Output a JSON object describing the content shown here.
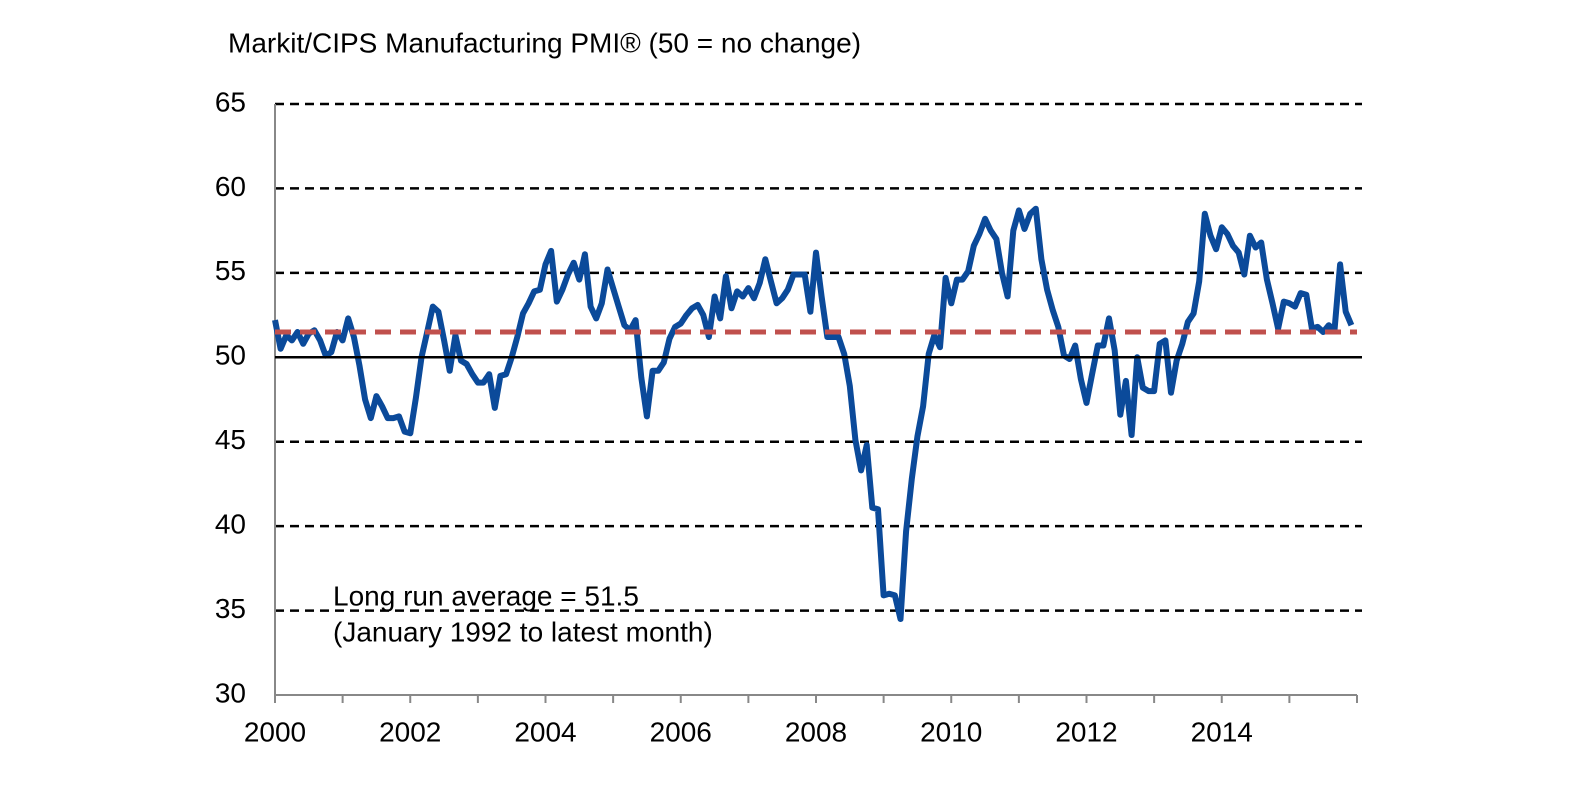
{
  "chart_data": {
    "type": "line",
    "title": "Markit/CIPS Manufacturing PMI® (50 = no change)",
    "annotation": [
      "Long run average = 51.5",
      "(January 1992 to latest month)"
    ],
    "xlim": [
      2000,
      2016
    ],
    "xticks": [
      2000,
      2002,
      2004,
      2006,
      2008,
      2010,
      2012,
      2014
    ],
    "xminor_ticks": [
      2001,
      2003,
      2005,
      2007,
      2009,
      2011,
      2013,
      2015,
      2016
    ],
    "ylim": [
      30,
      65
    ],
    "yticks": [
      30,
      35,
      40,
      45,
      50,
      55,
      60,
      65
    ],
    "grid": true,
    "reference_lines": [
      {
        "value": 50,
        "color": "#000000",
        "dashed": false
      },
      {
        "value": 51.5,
        "color": "#c0504d",
        "dashed": true
      }
    ],
    "x": [
      2000,
      2000.083,
      2000.167,
      2000.25,
      2000.333,
      2000.417,
      2000.5,
      2000.583,
      2000.667,
      2000.75,
      2000.833,
      2000.917,
      2001,
      2001.083,
      2001.167,
      2001.25,
      2001.333,
      2001.417,
      2001.5,
      2001.583,
      2001.667,
      2001.75,
      2001.833,
      2001.917,
      2002,
      2002.083,
      2002.167,
      2002.25,
      2002.333,
      2002.417,
      2002.5,
      2002.583,
      2002.667,
      2002.75,
      2002.833,
      2002.917,
      2003,
      2003.083,
      2003.167,
      2003.25,
      2003.333,
      2003.417,
      2003.5,
      2003.583,
      2003.667,
      2003.75,
      2003.833,
      2003.917,
      2004,
      2004.083,
      2004.167,
      2004.25,
      2004.333,
      2004.417,
      2004.5,
      2004.583,
      2004.667,
      2004.75,
      2004.833,
      2004.917,
      2005,
      2005.083,
      2005.167,
      2005.25,
      2005.333,
      2005.417,
      2005.5,
      2005.583,
      2005.667,
      2005.75,
      2005.833,
      2005.917,
      2006,
      2006.083,
      2006.167,
      2006.25,
      2006.333,
      2006.417,
      2006.5,
      2006.583,
      2006.667,
      2006.75,
      2006.833,
      2006.917,
      2007,
      2007.083,
      2007.167,
      2007.25,
      2007.333,
      2007.417,
      2007.5,
      2007.583,
      2007.667,
      2007.75,
      2007.833,
      2007.917,
      2008,
      2008.083,
      2008.167,
      2008.25,
      2008.333,
      2008.417,
      2008.5,
      2008.583,
      2008.667,
      2008.75,
      2008.833,
      2008.917,
      2009,
      2009.083,
      2009.167,
      2009.25,
      2009.333,
      2009.417,
      2009.5,
      2009.583,
      2009.667,
      2009.75,
      2009.833,
      2009.917,
      2010,
      2010.083,
      2010.167,
      2010.25,
      2010.333,
      2010.417,
      2010.5,
      2010.583,
      2010.667,
      2010.75,
      2010.833,
      2010.917,
      2011,
      2011.083,
      2011.167,
      2011.25,
      2011.333,
      2011.417,
      2011.5,
      2011.583,
      2011.667,
      2011.75,
      2011.833,
      2011.917,
      2012,
      2012.083,
      2012.167,
      2012.25,
      2012.333,
      2012.417,
      2012.5,
      2012.583,
      2012.667,
      2012.75,
      2012.833,
      2012.917,
      2013,
      2013.083,
      2013.167,
      2013.25,
      2013.333,
      2013.417,
      2013.5,
      2013.583,
      2013.667,
      2013.75,
      2013.833,
      2013.917,
      2014,
      2014.083,
      2014.167,
      2014.25,
      2014.333,
      2014.417,
      2014.5,
      2014.583,
      2014.667,
      2014.75,
      2014.833,
      2014.917,
      2015,
      2015.083,
      2015.167,
      2015.25,
      2015.333,
      2015.417,
      2015.5,
      2015.583,
      2015.667,
      2015.75,
      2015.833,
      2015.917
    ],
    "series": [
      {
        "color": "#0b4a9a",
        "values": [
          52.2,
          50.5,
          51.3,
          51.0,
          51.5,
          50.8,
          51.4,
          51.6,
          51.0,
          50.1,
          50.3,
          51.5,
          51.0,
          52.3,
          51.2,
          49.5,
          47.5,
          46.4,
          47.7,
          47.1,
          46.4,
          46.4,
          46.5,
          45.6,
          45.5,
          47.6,
          50.0,
          51.5,
          53.0,
          52.7,
          51.0,
          49.2,
          51.3,
          49.8,
          49.6,
          49.0,
          48.5,
          48.5,
          49.0,
          47.0,
          48.9,
          49.0,
          50.0,
          51.2,
          52.6,
          53.2,
          53.9,
          54.0,
          55.5,
          56.3,
          53.3,
          54.0,
          54.9,
          55.6,
          54.6,
          56.1,
          53.0,
          52.3,
          53.2,
          55.2,
          54.1,
          53.0,
          51.9,
          51.6,
          52.2,
          48.8,
          46.5,
          49.2,
          49.2,
          49.7,
          51.1,
          51.8,
          52.0,
          52.5,
          52.9,
          53.1,
          52.5,
          51.2,
          53.6,
          52.3,
          54.8,
          52.9,
          53.9,
          53.6,
          54.1,
          53.5,
          54.4,
          55.8,
          54.5,
          53.2,
          53.5,
          54.0,
          54.9,
          54.9,
          54.9,
          52.7,
          56.2,
          53.6,
          51.2,
          51.2,
          51.2,
          50.2,
          48.3,
          45.1,
          43.3,
          44.8,
          41.1,
          41.0,
          35.9,
          36.0,
          35.9,
          34.5,
          39.7,
          42.8,
          45.3,
          47.1,
          50.2,
          51.3,
          50.6,
          54.7,
          53.2,
          54.6,
          54.6,
          55.1,
          56.6,
          57.3,
          58.2,
          57.5,
          57.0,
          55.0,
          53.6,
          57.5,
          58.7,
          57.6,
          58.5,
          58.8,
          55.8,
          54.0,
          52.8,
          51.8,
          50.1,
          49.9,
          50.7,
          48.7,
          47.3,
          49.0,
          50.7,
          50.7,
          52.3,
          50.4,
          46.6,
          48.6,
          45.4,
          50.0,
          48.2,
          48.0,
          48.0,
          50.8,
          51.0,
          47.9,
          49.8,
          50.8,
          52.1,
          52.6,
          54.5,
          58.5,
          57.2,
          56.4,
          57.7,
          57.3,
          56.6,
          56.2,
          54.9,
          57.2,
          56.5,
          56.8,
          54.6,
          53.2,
          51.7,
          53.3,
          53.2,
          53.0,
          53.8,
          53.7,
          51.7,
          51.8,
          51.5,
          51.9,
          51.6,
          55.5,
          52.7,
          51.9
        ]
      }
    ]
  }
}
